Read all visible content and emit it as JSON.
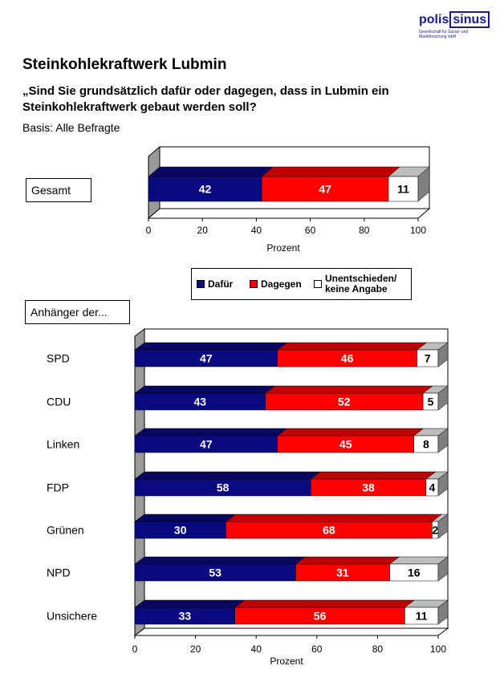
{
  "logo": {
    "name_part1": "polis",
    "name_part2": "sinus",
    "subtitle": "Gesellschaft für Sozial- und Marktforschung mbH"
  },
  "title": "Steinkohlekraftwerk Lubmin",
  "question": "„Sind Sie grundsätzlich dafür oder dagegen, dass in Lubmin ein Steinkohlekraftwerk gebaut werden soll?",
  "basis": "Basis: Alle Befragte",
  "group_label": "Anhänger der...",
  "legend": [
    {
      "label": "Dafür",
      "color": "#0a0a80"
    },
    {
      "label": "Dagegen",
      "color": "#ff0000"
    },
    {
      "label": "Unentschieden/ keine Angabe",
      "color": "#ffffff"
    }
  ],
  "chart_data": [
    {
      "type": "bar",
      "orientation": "horizontal",
      "stacked": true,
      "categories": [
        "Gesamt"
      ],
      "series": [
        {
          "name": "Dafür",
          "values": [
            42
          ]
        },
        {
          "name": "Dagegen",
          "values": [
            47
          ]
        },
        {
          "name": "Unentschieden/ keine Angabe",
          "values": [
            11
          ]
        }
      ],
      "xlabel": "Prozent",
      "xlim": [
        0,
        100
      ],
      "xticks": [
        0,
        20,
        40,
        60,
        80,
        100
      ]
    },
    {
      "type": "bar",
      "orientation": "horizontal",
      "stacked": true,
      "categories": [
        "SPD",
        "CDU",
        "Linken",
        "FDP",
        "Grünen",
        "NPD",
        "Unsichere"
      ],
      "series": [
        {
          "name": "Dafür",
          "values": [
            47,
            43,
            47,
            58,
            30,
            53,
            33
          ]
        },
        {
          "name": "Dagegen",
          "values": [
            46,
            52,
            45,
            38,
            68,
            31,
            56
          ]
        },
        {
          "name": "Unentschieden/ keine Angabe",
          "values": [
            7,
            5,
            8,
            4,
            2,
            16,
            11
          ]
        }
      ],
      "xlabel": "Prozent",
      "xlim": [
        0,
        100
      ],
      "xticks": [
        0,
        20,
        40,
        60,
        80,
        100
      ]
    }
  ]
}
